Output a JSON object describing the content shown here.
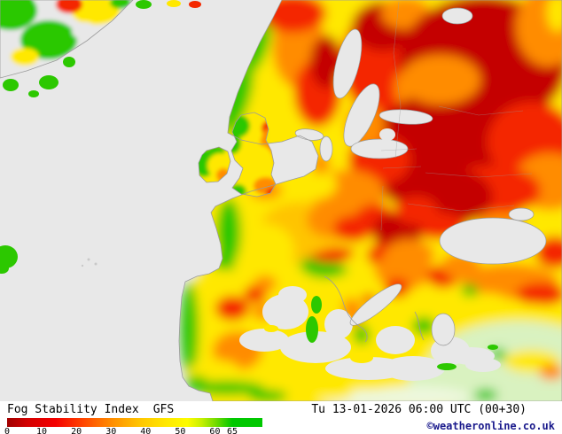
{
  "map": {
    "sea_color": "#e8e8e8",
    "coast_color": "#9b9b9b",
    "palette": {
      "dark_red": "#c40000",
      "red": "#f42800",
      "orange": "#ff8c00",
      "amber": "#ffc400",
      "yellow": "#ffe800",
      "green": "#2cc800",
      "pale_green": "#d9f2c0",
      "pale": "#edf8dd"
    }
  },
  "footer": {
    "title": "Fog Stability Index",
    "model": "GFS",
    "datetime": "Tu 13-01-2026 06:00 UTC (00+30)",
    "credit": "©weatheronline.co.uk",
    "credit_color": "#1a1a8c"
  },
  "legend": {
    "max": 65,
    "ticks": [
      0,
      10,
      20,
      30,
      40,
      50,
      60,
      65
    ],
    "stops": [
      {
        "value": 0,
        "color": "#a00000"
      },
      {
        "value": 6,
        "color": "#d40000"
      },
      {
        "value": 14,
        "color": "#f40000"
      },
      {
        "value": 22,
        "color": "#ff4600"
      },
      {
        "value": 30,
        "color": "#ff8c00"
      },
      {
        "value": 38,
        "color": "#ffc400"
      },
      {
        "value": 46,
        "color": "#ffe800"
      },
      {
        "value": 52,
        "color": "#fdfc00"
      },
      {
        "value": 56,
        "color": "#c8f000"
      },
      {
        "value": 60,
        "color": "#78dc00"
      },
      {
        "value": 65,
        "color": "#00c800"
      }
    ]
  }
}
